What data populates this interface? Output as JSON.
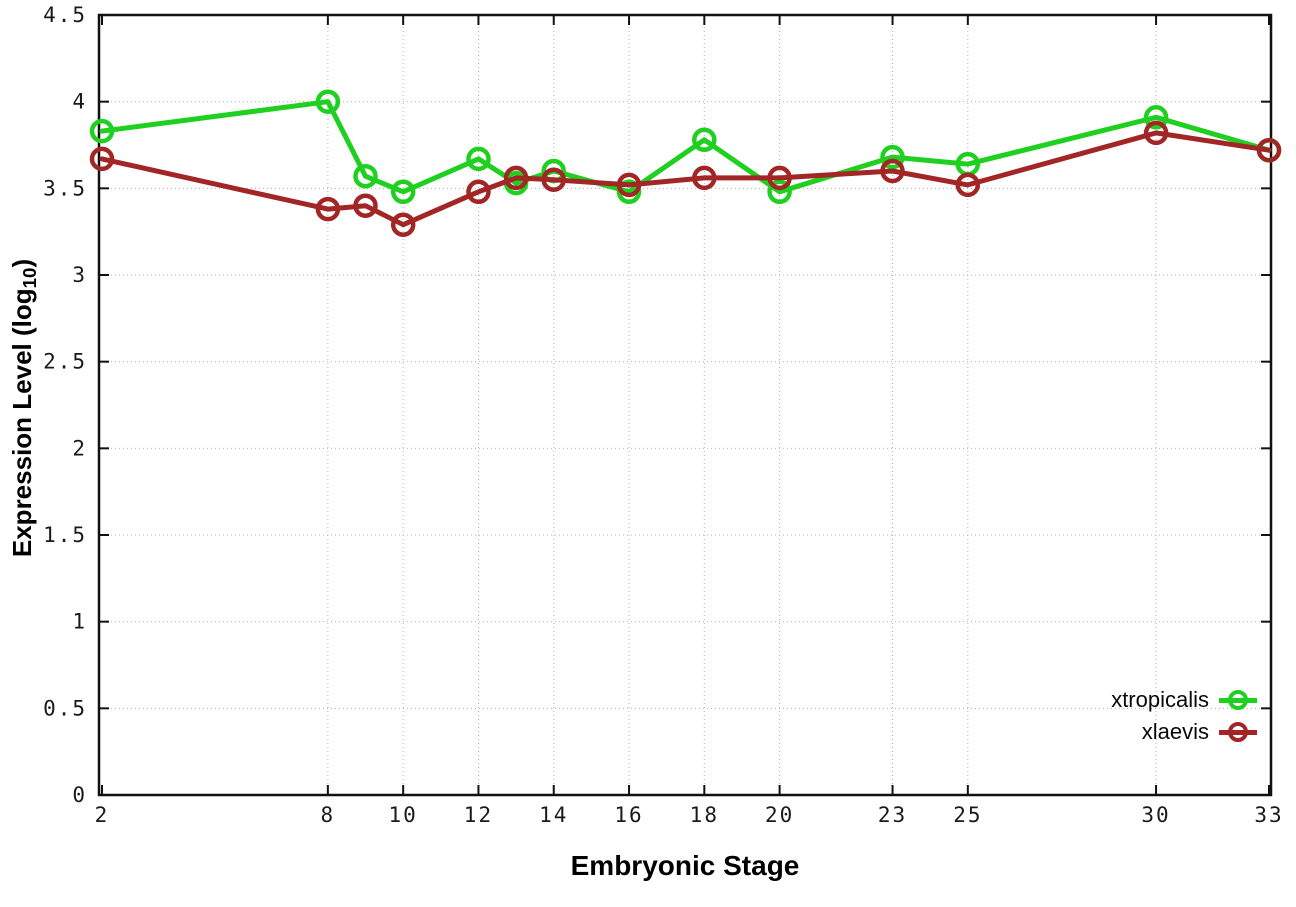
{
  "figure": {
    "background": "#ffffff",
    "colors": {
      "axis": "#111111",
      "grid": "#b3b3b3",
      "tick_text": "#1a1a1a",
      "title_text": "#000000"
    }
  },
  "chart_data": {
    "type": "line",
    "title": "",
    "xlabel": "Embryonic Stage",
    "ylabel": "Expression Level (log10)",
    "ylabel_rich": {
      "pre": "Expression Level (log",
      "sub": "10",
      "post": ")"
    },
    "xlim": [
      2,
      33
    ],
    "ylim": [
      0,
      4.5
    ],
    "grid": true,
    "legend_position": "bottom-right",
    "marker": "open-circle",
    "x": [
      2,
      8,
      9,
      10,
      12,
      13,
      14,
      16,
      18,
      20,
      23,
      25,
      30,
      33
    ],
    "xticks": {
      "values": [
        2,
        8,
        10,
        12,
        14,
        16,
        18,
        20,
        23,
        25,
        30,
        33
      ],
      "labels": [
        "2",
        "8",
        "10",
        "12",
        "14",
        "16",
        "18",
        "20",
        "23",
        "25",
        "30",
        "33"
      ]
    },
    "yticks": {
      "values": [
        0,
        0.5,
        1,
        1.5,
        2,
        2.5,
        3,
        3.5,
        4,
        4.5
      ],
      "labels": [
        "0",
        "0.5",
        "1",
        "1.5",
        "2",
        "2.5",
        "3",
        "3.5",
        "4",
        "4.5"
      ]
    },
    "series": [
      {
        "name": "xtropicalis",
        "color": "#20d020",
        "values": [
          3.83,
          4.0,
          3.57,
          3.48,
          3.67,
          3.53,
          3.6,
          3.48,
          3.78,
          3.48,
          3.68,
          3.64,
          3.91,
          3.72
        ]
      },
      {
        "name": "xlaevis",
        "color": "#a32626",
        "values": [
          3.67,
          3.38,
          3.4,
          3.29,
          3.48,
          3.56,
          3.55,
          3.52,
          3.56,
          3.56,
          3.6,
          3.52,
          3.82,
          3.72
        ]
      }
    ]
  }
}
